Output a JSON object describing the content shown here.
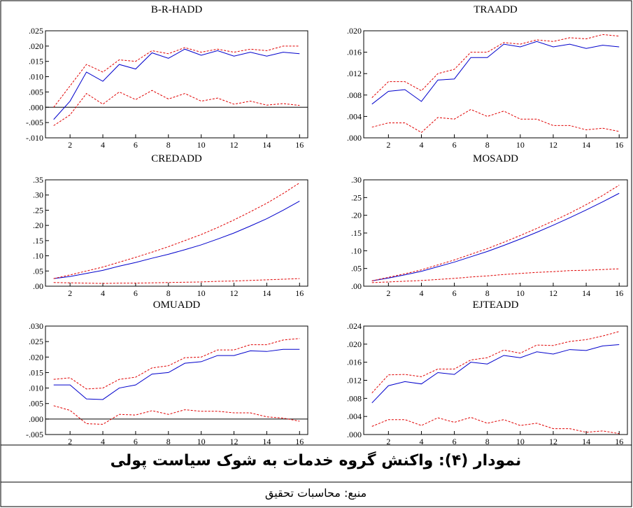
{
  "chart_data": [
    {
      "type": "line",
      "title": "B-R-HADD",
      "zero_line": true,
      "x": [
        1,
        2,
        3,
        4,
        5,
        6,
        7,
        8,
        9,
        10,
        11,
        12,
        13,
        14,
        15,
        16
      ],
      "xlim": [
        0.5,
        16.5
      ],
      "xticks": [
        2,
        4,
        6,
        8,
        10,
        12,
        14,
        16
      ],
      "ylim": [
        -0.01,
        0.025
      ],
      "yticks": [
        {
          "value": -0.01,
          "label": "-.010"
        },
        {
          "value": -0.005,
          "label": "-.005"
        },
        {
          "value": 0,
          "label": ".000"
        },
        {
          "value": 0.005,
          "label": ".005"
        },
        {
          "value": 0.01,
          "label": ".010"
        },
        {
          "value": 0.015,
          "label": ".015"
        },
        {
          "value": 0.02,
          "label": ".020"
        },
        {
          "value": 0.025,
          "label": ".025"
        }
      ],
      "series": [
        {
          "color": "#0000cc",
          "dash": false,
          "values": [
            -0.004,
            0.002,
            0.0115,
            0.0085,
            0.014,
            0.0125,
            0.0178,
            0.016,
            0.019,
            0.017,
            0.0185,
            0.0167,
            0.018,
            0.0167,
            0.018,
            0.0175
          ]
        },
        {
          "color": "#e00000",
          "dash": true,
          "values": [
            0.0,
            0.007,
            0.014,
            0.0115,
            0.0155,
            0.015,
            0.0185,
            0.0175,
            0.0195,
            0.018,
            0.019,
            0.018,
            0.019,
            0.0185,
            0.02,
            0.02
          ]
        },
        {
          "color": "#e00000",
          "dash": true,
          "values": [
            -0.006,
            -0.0025,
            0.0045,
            0.001,
            0.005,
            0.0025,
            0.0055,
            0.0027,
            0.0045,
            0.002,
            0.003,
            0.001,
            0.002,
            0.0007,
            0.0012,
            0.0006
          ]
        }
      ]
    },
    {
      "type": "line",
      "title": "TRAADD",
      "zero_line": false,
      "x": [
        1,
        2,
        3,
        4,
        5,
        6,
        7,
        8,
        9,
        10,
        11,
        12,
        13,
        14,
        15,
        16
      ],
      "xlim": [
        0.5,
        16.5
      ],
      "xticks": [
        2,
        4,
        6,
        8,
        10,
        12,
        14,
        16
      ],
      "ylim": [
        0,
        0.02
      ],
      "yticks": [
        {
          "value": 0,
          "label": ".000"
        },
        {
          "value": 0.004,
          "label": ".004"
        },
        {
          "value": 0.008,
          "label": ".008"
        },
        {
          "value": 0.012,
          "label": ".012"
        },
        {
          "value": 0.016,
          "label": ".016"
        },
        {
          "value": 0.02,
          "label": ".020"
        }
      ],
      "series": [
        {
          "color": "#0000cc",
          "dash": false,
          "values": [
            0.0063,
            0.0087,
            0.009,
            0.0068,
            0.0108,
            0.011,
            0.015,
            0.015,
            0.0175,
            0.017,
            0.018,
            0.017,
            0.0175,
            0.0167,
            0.0173,
            0.017
          ]
        },
        {
          "color": "#e00000",
          "dash": true,
          "values": [
            0.0075,
            0.0105,
            0.0105,
            0.0088,
            0.012,
            0.0128,
            0.016,
            0.016,
            0.0178,
            0.0175,
            0.0183,
            0.018,
            0.0187,
            0.0185,
            0.0193,
            0.019
          ]
        },
        {
          "color": "#e00000",
          "dash": true,
          "values": [
            0.002,
            0.0028,
            0.0028,
            0.001,
            0.0038,
            0.0035,
            0.0053,
            0.004,
            0.005,
            0.0035,
            0.0035,
            0.0023,
            0.0023,
            0.0015,
            0.0018,
            0.0012
          ]
        }
      ]
    },
    {
      "type": "line",
      "title": "CREDADD",
      "zero_line": false,
      "x": [
        1,
        2,
        3,
        4,
        5,
        6,
        7,
        8,
        9,
        10,
        11,
        12,
        13,
        14,
        15,
        16
      ],
      "xlim": [
        0.5,
        16.5
      ],
      "xticks": [
        2,
        4,
        6,
        8,
        10,
        12,
        14,
        16
      ],
      "ylim": [
        0,
        0.35
      ],
      "yticks": [
        {
          "value": 0,
          "label": ".00"
        },
        {
          "value": 0.05,
          "label": ".05"
        },
        {
          "value": 0.1,
          "label": ".10"
        },
        {
          "value": 0.15,
          "label": ".15"
        },
        {
          "value": 0.2,
          "label": ".20"
        },
        {
          "value": 0.25,
          "label": ".25"
        },
        {
          "value": 0.3,
          "label": ".30"
        },
        {
          "value": 0.35,
          "label": ".35"
        }
      ],
      "series": [
        {
          "color": "#0000cc",
          "dash": false,
          "values": [
            0.025,
            0.032,
            0.042,
            0.052,
            0.066,
            0.078,
            0.092,
            0.105,
            0.12,
            0.136,
            0.155,
            0.175,
            0.198,
            0.222,
            0.25,
            0.28
          ]
        },
        {
          "color": "#e00000",
          "dash": true,
          "values": [
            0.025,
            0.037,
            0.05,
            0.063,
            0.079,
            0.095,
            0.112,
            0.13,
            0.15,
            0.17,
            0.193,
            0.218,
            0.245,
            0.273,
            0.305,
            0.34
          ]
        },
        {
          "color": "#e00000",
          "dash": true,
          "values": [
            0.012,
            0.011,
            0.01,
            0.009,
            0.01,
            0.01,
            0.011,
            0.012,
            0.013,
            0.014,
            0.016,
            0.017,
            0.019,
            0.021,
            0.023,
            0.025
          ]
        }
      ]
    },
    {
      "type": "line",
      "title": "MOSADD",
      "zero_line": false,
      "x": [
        1,
        2,
        3,
        4,
        5,
        6,
        7,
        8,
        9,
        10,
        11,
        12,
        13,
        14,
        15,
        16
      ],
      "xlim": [
        0.5,
        16.5
      ],
      "xticks": [
        2,
        4,
        6,
        8,
        10,
        12,
        14,
        16
      ],
      "ylim": [
        0,
        0.3
      ],
      "yticks": [
        {
          "value": 0,
          "label": ".00"
        },
        {
          "value": 0.05,
          "label": ".05"
        },
        {
          "value": 0.1,
          "label": ".10"
        },
        {
          "value": 0.15,
          "label": ".15"
        },
        {
          "value": 0.2,
          "label": ".20"
        },
        {
          "value": 0.25,
          "label": ".25"
        },
        {
          "value": 0.3,
          "label": ".30"
        }
      ],
      "series": [
        {
          "color": "#0000cc",
          "dash": false,
          "values": [
            0.015,
            0.023,
            0.032,
            0.042,
            0.055,
            0.068,
            0.083,
            0.098,
            0.115,
            0.133,
            0.152,
            0.172,
            0.193,
            0.215,
            0.238,
            0.262
          ]
        },
        {
          "color": "#e00000",
          "dash": true,
          "values": [
            0.015,
            0.025,
            0.035,
            0.046,
            0.06,
            0.074,
            0.09,
            0.106,
            0.124,
            0.143,
            0.163,
            0.184,
            0.206,
            0.23,
            0.256,
            0.285
          ]
        },
        {
          "color": "#e00000",
          "dash": true,
          "values": [
            0.01,
            0.012,
            0.014,
            0.016,
            0.019,
            0.022,
            0.026,
            0.029,
            0.033,
            0.036,
            0.039,
            0.041,
            0.044,
            0.045,
            0.047,
            0.049
          ]
        }
      ]
    },
    {
      "type": "line",
      "title": "OMUADD",
      "zero_line": true,
      "x": [
        1,
        2,
        3,
        4,
        5,
        6,
        7,
        8,
        9,
        10,
        11,
        12,
        13,
        14,
        15,
        16
      ],
      "xlim": [
        0.5,
        16.5
      ],
      "xticks": [
        2,
        4,
        6,
        8,
        10,
        12,
        14,
        16
      ],
      "ylim": [
        -0.005,
        0.03
      ],
      "yticks": [
        {
          "value": -0.005,
          "label": "-.005"
        },
        {
          "value": 0,
          "label": ".000"
        },
        {
          "value": 0.005,
          "label": ".005"
        },
        {
          "value": 0.01,
          "label": ".010"
        },
        {
          "value": 0.015,
          "label": ".015"
        },
        {
          "value": 0.02,
          "label": ".020"
        },
        {
          "value": 0.025,
          "label": ".025"
        },
        {
          "value": 0.03,
          "label": ".030"
        }
      ],
      "series": [
        {
          "color": "#0000cc",
          "dash": false,
          "values": [
            0.011,
            0.011,
            0.0065,
            0.0063,
            0.01,
            0.011,
            0.0145,
            0.015,
            0.018,
            0.0185,
            0.0205,
            0.0205,
            0.022,
            0.0218,
            0.0225,
            0.0225
          ]
        },
        {
          "color": "#e00000",
          "dash": true,
          "values": [
            0.0128,
            0.0133,
            0.0097,
            0.01,
            0.0128,
            0.0135,
            0.0165,
            0.0172,
            0.0198,
            0.02,
            0.0223,
            0.0223,
            0.024,
            0.024,
            0.0255,
            0.026
          ]
        },
        {
          "color": "#e00000",
          "dash": true,
          "values": [
            0.0043,
            0.0028,
            -0.0015,
            -0.0017,
            0.0015,
            0.0013,
            0.0027,
            0.0015,
            0.003,
            0.0025,
            0.0025,
            0.002,
            0.002,
            0.0007,
            0.0003,
            -0.0007
          ]
        }
      ]
    },
    {
      "type": "line",
      "title": "EJTEADD",
      "zero_line": false,
      "x": [
        1,
        2,
        3,
        4,
        5,
        6,
        7,
        8,
        9,
        10,
        11,
        12,
        13,
        14,
        15,
        16
      ],
      "xlim": [
        0.5,
        16.5
      ],
      "xticks": [
        2,
        4,
        6,
        8,
        10,
        12,
        14,
        16
      ],
      "ylim": [
        0,
        0.024
      ],
      "yticks": [
        {
          "value": 0,
          "label": ".000"
        },
        {
          "value": 0.004,
          "label": ".004"
        },
        {
          "value": 0.008,
          "label": ".008"
        },
        {
          "value": 0.012,
          "label": ".012"
        },
        {
          "value": 0.016,
          "label": ".016"
        },
        {
          "value": 0.02,
          "label": ".020"
        },
        {
          "value": 0.024,
          "label": ".024"
        }
      ],
      "series": [
        {
          "color": "#0000cc",
          "dash": false,
          "values": [
            0.007,
            0.0108,
            0.0117,
            0.0112,
            0.0137,
            0.0133,
            0.016,
            0.0156,
            0.0175,
            0.017,
            0.0183,
            0.0178,
            0.0188,
            0.0186,
            0.0196,
            0.0199
          ]
        },
        {
          "color": "#e00000",
          "dash": true,
          "values": [
            0.0092,
            0.0132,
            0.0133,
            0.0128,
            0.0145,
            0.0145,
            0.0165,
            0.017,
            0.0187,
            0.018,
            0.0198,
            0.0197,
            0.0206,
            0.021,
            0.0218,
            0.0228
          ]
        },
        {
          "color": "#e00000",
          "dash": true,
          "values": [
            0.0018,
            0.0033,
            0.0033,
            0.002,
            0.0037,
            0.0027,
            0.0038,
            0.0025,
            0.0033,
            0.002,
            0.0025,
            0.0013,
            0.0013,
            0.0005,
            0.0008,
            0.0002
          ]
        }
      ]
    }
  ],
  "caption": "نمودار (۴): واکنش گروه خدمات به شوک سیاست پولی",
  "source": "منبع: محاسبات تحقیق"
}
